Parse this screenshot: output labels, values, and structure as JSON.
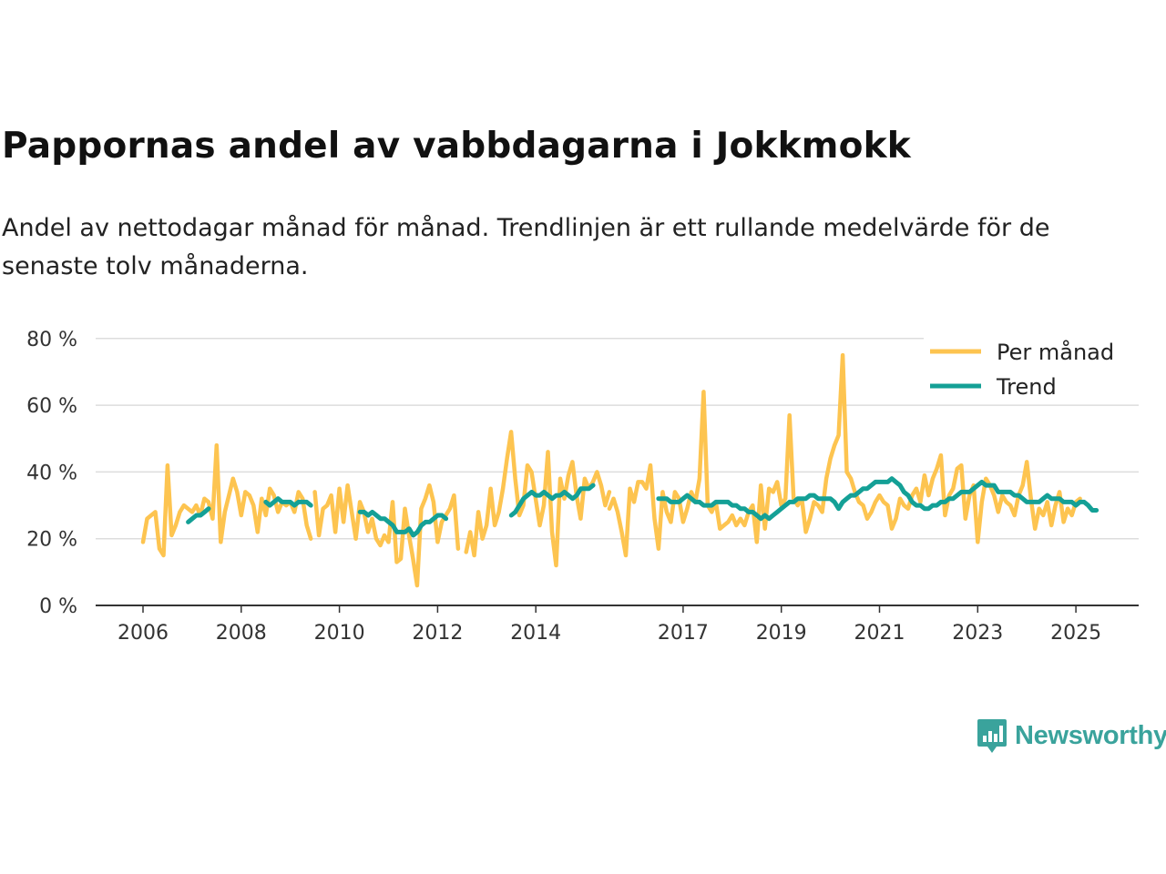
{
  "title": "Pappornas andel av vabbdagarna i Jokkmokk",
  "subtitle": "Andel av nettodagar månad för månad. Trendlinjen är ett rullande medelvärde för de senaste tolv månaderna.",
  "brand": {
    "name": "Newsworthy",
    "color": "#3aa39c"
  },
  "colors": {
    "monthly": "#fdc450",
    "trend": "#14a096",
    "grid": "#dddddd",
    "axis": "#333333"
  },
  "chart_data": {
    "type": "line",
    "title": "Pappornas andel av vabbdagarna i Jokkmokk",
    "ylabel": "",
    "xlabel": "",
    "ylim": [
      0,
      80
    ],
    "xlim": [
      2005.5,
      2026.2
    ],
    "y_ticks": [
      0,
      20,
      40,
      60,
      80
    ],
    "y_tick_labels": [
      "0 %",
      "20 %",
      "40 %",
      "60 %",
      "80 %"
    ],
    "x_ticks": [
      2006,
      2008,
      2010,
      2012,
      2014,
      2017,
      2019,
      2021,
      2023,
      2025
    ],
    "x_tick_labels": [
      "2006",
      "2008",
      "2010",
      "2012",
      "2014",
      "2017",
      "2019",
      "2021",
      "2023",
      "2025"
    ],
    "legend": {
      "position": "top-right",
      "entries": [
        "Per månad",
        "Trend"
      ]
    },
    "series": [
      {
        "name": "Per månad",
        "segments": [
          {
            "start": 2006.0,
            "values": [
              19,
              26,
              27,
              28,
              17,
              15,
              42,
              21,
              24,
              28,
              30,
              29,
              28,
              30,
              27,
              32,
              31,
              26,
              48,
              19,
              28,
              33,
              38,
              34,
              27,
              34,
              33,
              30,
              22,
              32,
              27,
              35,
              33,
              28,
              31,
              30,
              31,
              28,
              34,
              32,
              24,
              20
            ]
          },
          {
            "start": 2009.5,
            "values": [
              34,
              21,
              29,
              30,
              33,
              22,
              35,
              25,
              36,
              28,
              20,
              31,
              28,
              22,
              26,
              20,
              18,
              21,
              19,
              31,
              13,
              14,
              29,
              21,
              14,
              6,
              29,
              32,
              36,
              31,
              19,
              25,
              27,
              29,
              33,
              17
            ]
          },
          {
            "start": 2012.58,
            "values": [
              16,
              22,
              15,
              28,
              20,
              24,
              35,
              24,
              28,
              35,
              44,
              52,
              38,
              27,
              30,
              42,
              40,
              32,
              24,
              30,
              46,
              22,
              12,
              38,
              32,
              39,
              43,
              33,
              26,
              38,
              35,
              37,
              40,
              36,
              30,
              34
            ]
          },
          {
            "start": 2015.5,
            "values": [
              29,
              32,
              28,
              22,
              15,
              35,
              31,
              37,
              37,
              35,
              42,
              26,
              17,
              34,
              28,
              25,
              34,
              32,
              25,
              29,
              34,
              31,
              38,
              64,
              30,
              28,
              31,
              23,
              24,
              25,
              27,
              24,
              26,
              24,
              28,
              30,
              19,
              36,
              23,
              35,
              34,
              37,
              30,
              32,
              57,
              32,
              30,
              32,
              22,
              26,
              31,
              30,
              28,
              38,
              44,
              48,
              51,
              75,
              40,
              38,
              34,
              31,
              30,
              26,
              28,
              31,
              33,
              31,
              30,
              23,
              26,
              32,
              30,
              29,
              33,
              35,
              31,
              39,
              33,
              38,
              41,
              45,
              27,
              33,
              35,
              41,
              42,
              26,
              33,
              36,
              19,
              31,
              38,
              36,
              33,
              28,
              33,
              31,
              30,
              27,
              33,
              36,
              43,
              32,
              23,
              29,
              27,
              31,
              24,
              30,
              34,
              25,
              29,
              27,
              31,
              32
            ]
          }
        ]
      },
      {
        "name": "Trend",
        "segments": [
          {
            "start": 2006.92,
            "values": [
              25,
              26,
              27,
              27,
              28,
              29
            ]
          },
          {
            "start": 2008.5,
            "values": [
              31,
              30,
              31,
              32,
              31,
              31,
              31,
              30,
              31,
              31,
              31,
              30
            ]
          },
          {
            "start": 2010.42,
            "values": [
              28,
              28,
              27,
              28,
              27,
              26,
              26,
              25,
              24,
              22,
              22,
              22,
              23,
              21,
              22,
              24,
              25,
              25,
              26,
              27,
              27,
              26
            ]
          },
          {
            "start": 2013.5,
            "values": [
              27,
              28,
              30,
              32,
              33,
              34,
              33,
              33,
              34,
              33,
              32,
              33,
              33,
              34,
              33,
              32,
              33,
              35,
              35,
              35,
              36
            ]
          },
          {
            "start": 2016.5,
            "values": [
              32,
              32,
              32,
              31,
              31,
              31,
              32,
              33,
              32,
              31,
              31,
              30,
              30,
              30,
              31,
              31,
              31,
              31,
              30,
              30,
              29,
              29,
              28,
              28,
              27,
              26,
              27,
              26,
              27,
              28,
              29,
              30,
              31,
              31,
              32,
              32,
              32,
              33,
              33,
              32,
              32,
              32,
              32,
              31,
              29,
              31,
              32,
              33,
              33,
              34,
              35,
              35,
              36,
              37,
              37,
              37,
              37,
              38,
              37,
              36,
              34,
              33,
              31,
              30,
              30,
              29,
              29,
              30,
              30,
              31,
              31,
              32,
              32,
              33,
              34,
              34,
              34,
              35,
              36,
              37,
              36,
              36,
              36,
              34,
              34,
              34,
              34,
              33,
              33,
              32,
              31,
              31,
              31,
              31,
              32,
              33,
              32,
              32,
              32,
              31,
              31,
              31,
              30,
              31,
              31,
              30,
              28.5,
              28.5
            ]
          }
        ]
      }
    ]
  }
}
